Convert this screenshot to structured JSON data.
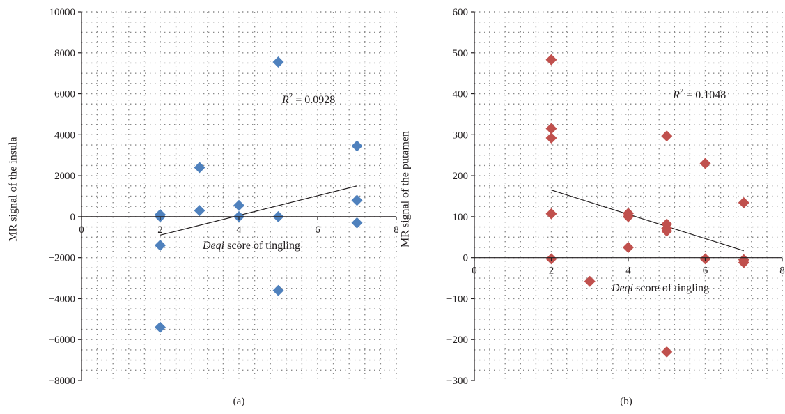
{
  "charts": [
    {
      "key": "a",
      "panel_label": "(a)",
      "chart_data": {
        "type": "scatter",
        "title": "",
        "xlabel_emph": "Deqi",
        "xlabel_rest": " score of tingling",
        "ylabel": "MR signal of the insula",
        "xlim": [
          0,
          8
        ],
        "ylim": [
          -8000,
          10000
        ],
        "xticks": [
          "0",
          "2",
          "4",
          "6",
          "8"
        ],
        "yticks": [
          "−8000",
          "−6000",
          "−4000",
          "−2000",
          "0",
          "2000",
          "4000",
          "6000",
          "8000",
          "10000"
        ],
        "ytick_values": [
          -8000,
          -6000,
          -4000,
          -2000,
          0,
          2000,
          4000,
          6000,
          8000,
          10000
        ],
        "grid": true,
        "marker": "diamond",
        "color": "#4f81bd",
        "points": [
          {
            "x": 2,
            "y": 100
          },
          {
            "x": 2,
            "y": 0
          },
          {
            "x": 2,
            "y": -1400
          },
          {
            "x": 2,
            "y": -5400
          },
          {
            "x": 3,
            "y": 2400
          },
          {
            "x": 3,
            "y": 300
          },
          {
            "x": 4,
            "y": 550
          },
          {
            "x": 4,
            "y": 0
          },
          {
            "x": 5,
            "y": 7550
          },
          {
            "x": 5,
            "y": 0
          },
          {
            "x": 5,
            "y": -3600
          },
          {
            "x": 7,
            "y": 3450
          },
          {
            "x": 7,
            "y": 800
          },
          {
            "x": 7,
            "y": -300
          }
        ],
        "trendline": {
          "x": [
            2,
            7
          ],
          "y": [
            -900,
            1500
          ]
        },
        "r2_label": "R",
        "r2_exp": "2",
        "r2_value": " = 0.0928"
      }
    },
    {
      "key": "b",
      "panel_label": "(b)",
      "chart_data": {
        "type": "scatter",
        "title": "",
        "xlabel_emph": "Deqi",
        "xlabel_rest": " score of tingling",
        "ylabel": "MR signal of the putamen",
        "xlim": [
          0,
          8
        ],
        "ylim": [
          -300,
          600
        ],
        "xticks": [
          "0",
          "2",
          "4",
          "6",
          "8"
        ],
        "yticks": [
          "−300",
          "−200",
          "−100",
          "0",
          "100",
          "200",
          "300",
          "400",
          "500",
          "600"
        ],
        "ytick_values": [
          -300,
          -200,
          -100,
          0,
          100,
          200,
          300,
          400,
          500,
          600
        ],
        "grid": true,
        "marker": "diamond",
        "color": "#c0504d",
        "points": [
          {
            "x": 2,
            "y": 483
          },
          {
            "x": 2,
            "y": 315
          },
          {
            "x": 2,
            "y": 292
          },
          {
            "x": 2,
            "y": 107
          },
          {
            "x": 2,
            "y": -3
          },
          {
            "x": 3,
            "y": -58
          },
          {
            "x": 4,
            "y": 108
          },
          {
            "x": 4,
            "y": 100
          },
          {
            "x": 4,
            "y": 25
          },
          {
            "x": 5,
            "y": 297
          },
          {
            "x": 5,
            "y": 82
          },
          {
            "x": 5,
            "y": 72
          },
          {
            "x": 5,
            "y": 65
          },
          {
            "x": 5,
            "y": -230
          },
          {
            "x": 6,
            "y": 230
          },
          {
            "x": 6,
            "y": -3
          },
          {
            "x": 7,
            "y": 134
          },
          {
            "x": 7,
            "y": -5
          },
          {
            "x": 7,
            "y": -12
          }
        ],
        "trendline": {
          "x": [
            2,
            7
          ],
          "y": [
            165,
            17
          ]
        },
        "r2_label": "R",
        "r2_exp": "2",
        "r2_value": " = 0.1048"
      }
    }
  ]
}
